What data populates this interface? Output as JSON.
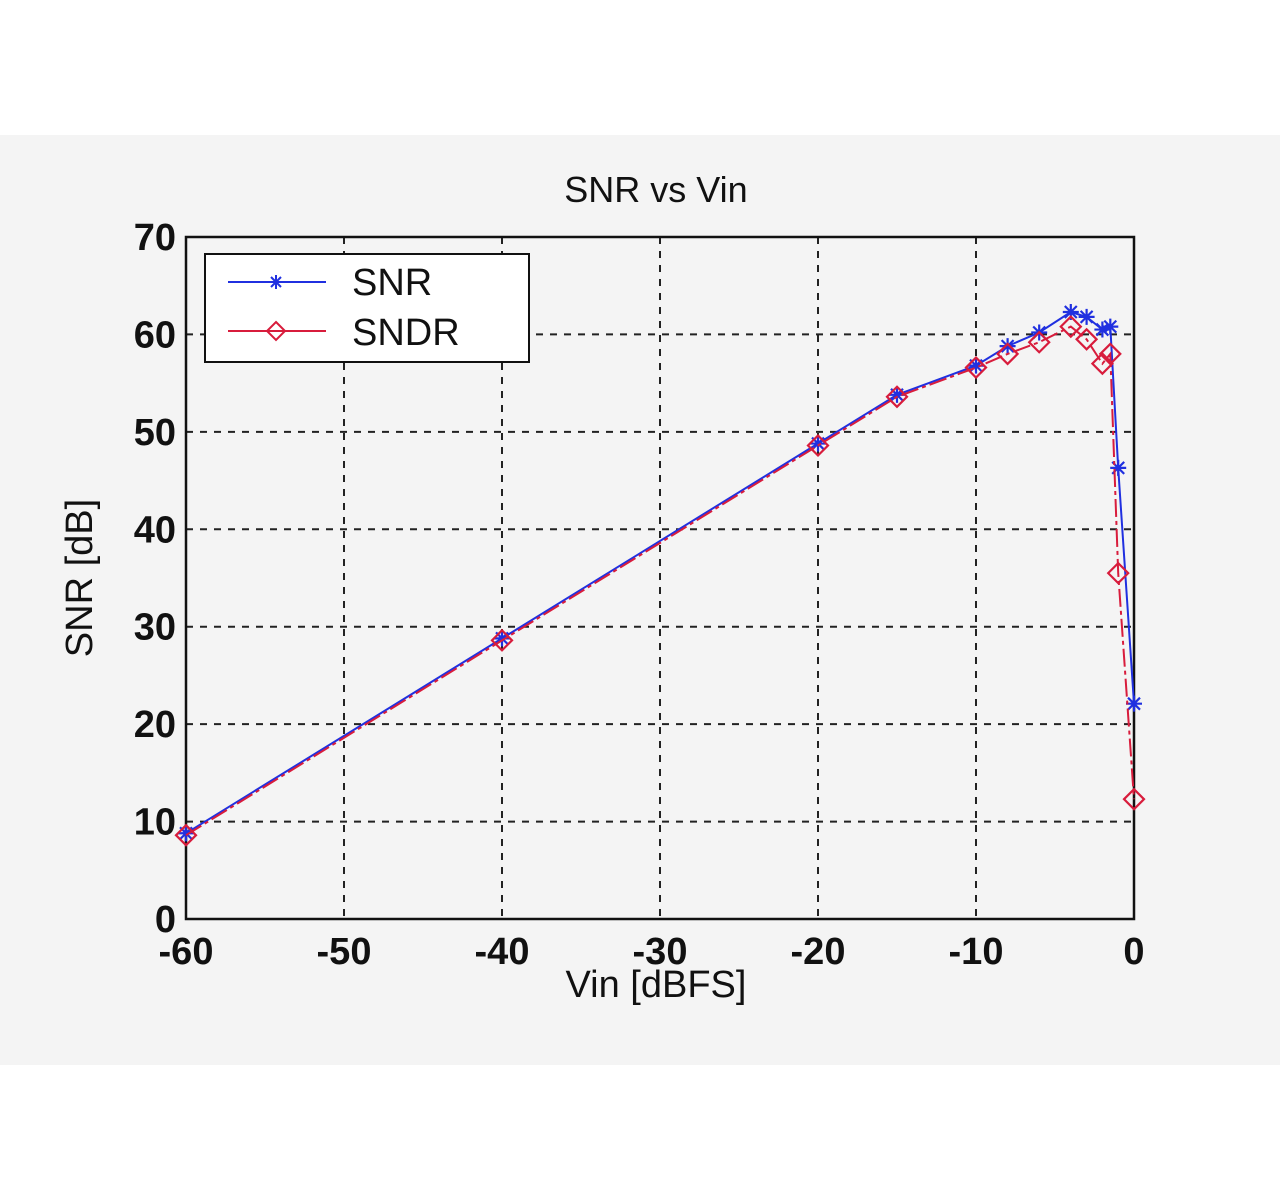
{
  "chart_data": {
    "type": "line",
    "title": "SNR vs Vin",
    "xlabel": "Vin [dBFS]",
    "ylabel": "SNR [dB]",
    "xlim": [
      -60,
      0
    ],
    "ylim": [
      0,
      70
    ],
    "xticks": [
      -60,
      -50,
      -40,
      -30,
      -20,
      -10,
      0
    ],
    "yticks": [
      0,
      10,
      20,
      30,
      40,
      50,
      60,
      70
    ],
    "xtick_labels": [
      "-60",
      "-50",
      "-40",
      "-30",
      "-20",
      "-10",
      "0"
    ],
    "ytick_labels": [
      "0",
      "10",
      "20",
      "30",
      "40",
      "50",
      "60",
      "70"
    ],
    "grid": true,
    "legend_position": "top-left",
    "series": [
      {
        "name": "SNR",
        "color": "#2030e0",
        "marker": "star",
        "x": [
          -60,
          -40,
          -20,
          -15,
          -10,
          -8,
          -6,
          -4,
          -3,
          -2,
          -1.5,
          -1,
          0
        ],
        "y": [
          8.8,
          28.8,
          48.8,
          53.8,
          56.8,
          58.8,
          60.2,
          62.3,
          61.8,
          60.5,
          60.8,
          46.3,
          22.1
        ]
      },
      {
        "name": "SNDR",
        "color": "#d81c3c",
        "marker": "diamond",
        "x": [
          -60,
          -40,
          -20,
          -15,
          -10,
          -8,
          -6,
          -4,
          -3,
          -2,
          -1.5,
          -1,
          0
        ],
        "y": [
          8.6,
          28.6,
          48.6,
          53.6,
          56.6,
          58.0,
          59.2,
          60.8,
          59.5,
          57.0,
          58.0,
          35.5,
          12.3
        ]
      }
    ]
  }
}
